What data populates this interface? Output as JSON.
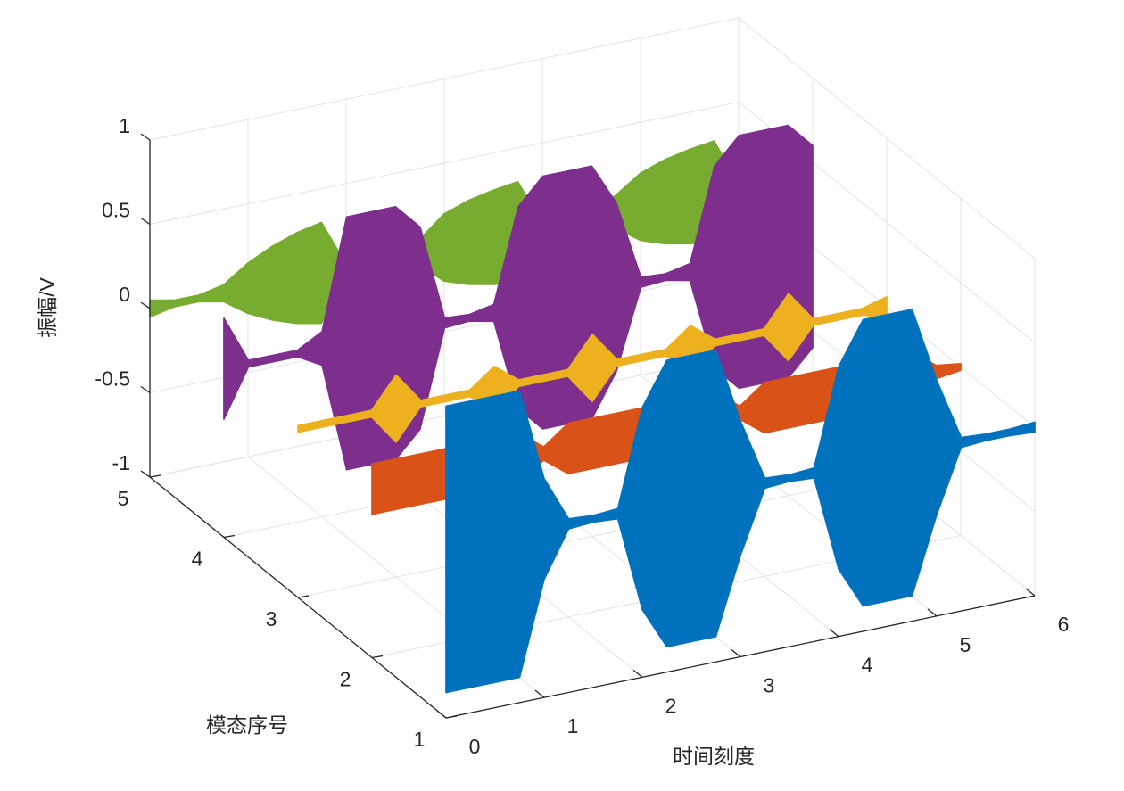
{
  "chart_data": {
    "type": "waterfall3d",
    "xlabel": "时间刻度",
    "ylabel": "模态序号",
    "zlabel": "振幅/V",
    "x": [
      0,
      0.25,
      0.5,
      0.75,
      1,
      1.25,
      1.5,
      1.75,
      2,
      2.25,
      2.5,
      2.75,
      3,
      3.25,
      3.5,
      3.75,
      4,
      4.25,
      4.5,
      4.75,
      5,
      5.25,
      5.5,
      5.75,
      6
    ],
    "series": [
      {
        "y": 5,
        "color": "#77AC30",
        "values": [
          0.05,
          0.02,
          0.02,
          0.05,
          0.15,
          0.22,
          0.27,
          0.3,
          0.02,
          0.02,
          0.02,
          0.08,
          0.2,
          0.25,
          0.28,
          0.3,
          0.02,
          0.02,
          0.02,
          0.1,
          0.2,
          0.25,
          0.28,
          0.3,
          0.02
        ]
      },
      {
        "y": 4,
        "color": "#7E2F8E",
        "values": [
          0.3,
          0.02,
          0.02,
          0.02,
          0.1,
          0.75,
          0.75,
          0.75,
          0.6,
          0.03,
          0.02,
          0.05,
          0.6,
          0.75,
          0.75,
          0.75,
          0.5,
          0.03,
          0.02,
          0.05,
          0.6,
          0.75,
          0.75,
          0.75,
          0.6
        ]
      },
      {
        "y": 3,
        "color": "#EDB120",
        "values": [
          0.02,
          0.02,
          0.02,
          0.02,
          0.2,
          0.02,
          0.02,
          0.02,
          0.13,
          0.02,
          0.02,
          0.02,
          0.2,
          0.02,
          0.02,
          0.02,
          0.13,
          0.02,
          0.02,
          0.02,
          0.2,
          0.02,
          0.02,
          0.02,
          0.06
        ]
      },
      {
        "y": 2,
        "color": "#D95319",
        "values": [
          0.15,
          0.15,
          0.15,
          0.15,
          0.15,
          0.15,
          0.15,
          0.04,
          0.15,
          0.15,
          0.15,
          0.15,
          0.15,
          0.15,
          0.15,
          0.04,
          0.15,
          0.15,
          0.15,
          0.15,
          0.15,
          0.15,
          0.15,
          0.04,
          0.02
        ]
      },
      {
        "y": 1,
        "color": "#0072BD",
        "values": [
          0.85,
          0.85,
          0.85,
          0.85,
          0.3,
          0.03,
          0.02,
          0.03,
          0.6,
          0.85,
          0.85,
          0.85,
          0.4,
          0.03,
          0.02,
          0.03,
          0.6,
          0.85,
          0.85,
          0.85,
          0.4,
          0.03,
          0.02,
          0.02,
          0.03
        ]
      }
    ],
    "xlim": [
      0,
      6
    ],
    "xticks": [
      0,
      1,
      2,
      3,
      4,
      5,
      6
    ],
    "ylim": [
      1,
      5
    ],
    "yticks": [
      1,
      2,
      3,
      4,
      5
    ],
    "zlim": [
      -1,
      1
    ],
    "zticks": [
      -1,
      -0.5,
      0,
      0.5,
      1
    ],
    "grid": true
  }
}
